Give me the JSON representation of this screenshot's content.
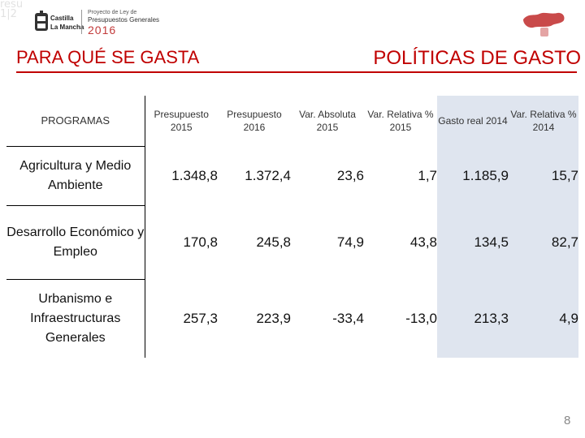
{
  "header": {
    "ghost_text": "resu\n1|2",
    "logo_line1": "Castilla",
    "logo_line2": "La Mancha",
    "budget_sub": "Proyecto de Ley de",
    "budget_main": "Presupuestos Generales",
    "budget_year": "2016"
  },
  "titles": {
    "left": "PARA QUÉ SE GASTA",
    "right": "POLÍTICAS DE GASTO"
  },
  "table": {
    "headers": [
      "PROGRAMAS",
      "Presupuesto 2015",
      "Presupuesto 2016",
      "Var. Absoluta 2015",
      "Var. Relativa % 2015",
      "Gasto real 2014",
      "Var. Relativa % 2014"
    ],
    "rows": [
      {
        "label": "Agricultura y Medio Ambiente",
        "values": [
          "1.348,8",
          "1.372,4",
          "23,6",
          "1,7",
          "1.185,9",
          "15,7"
        ]
      },
      {
        "label": "Desarrollo Económico y Empleo",
        "values": [
          "170,8",
          "245,8",
          "74,9",
          "43,8",
          "134,5",
          "82,7"
        ]
      },
      {
        "label": "Urbanismo e Infraestructuras Generales",
        "values": [
          "257,3",
          "223,9",
          "-33,4",
          "-13,0",
          "213,3",
          "4,9"
        ]
      }
    ],
    "shade_color": "#dfe5ef"
  },
  "accent_color": "#c00000",
  "page_number": "8"
}
